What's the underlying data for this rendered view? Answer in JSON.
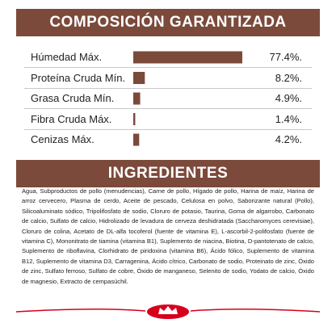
{
  "composition": {
    "title": "COMPOSICIÓN GARANTIZADA",
    "rows": [
      {
        "label": "Húmedad Máx.",
        "value": 77.4,
        "value_label": "77.4%."
      },
      {
        "label": "Proteína Cruda Mín.",
        "value": 8.2,
        "value_label": "8.2%."
      },
      {
        "label": "Grasa Cruda Mín.",
        "value": 4.9,
        "value_label": "4.9%."
      },
      {
        "label": "Fibra Cruda Máx.",
        "value": 1.4,
        "value_label": "1.4%."
      },
      {
        "label": "Cenizas Máx.",
        "value": 4.2,
        "value_label": "4.2%."
      }
    ]
  },
  "ingredients": {
    "title": "INGREDIENTES",
    "text": "Agua, Subproductos de pollo (menudencias), Carne de pollo, Hígado de pollo, Harina de maíz, Harina de arroz cervecero, Plasma de cerdo, Aceite de pescado, Celulosa en polvo, Saborizante natural (Pollo), Silicoaluminato sódico, Tripolifosfato de sodio, Cloruro de potasio, Taurina, Goma de algarrobo, Carbonato de calcio, Sulfato de calcio, Hidrolizado de levadura de cerveza deshidratada (Saccharomyces cerevisiae), Cloruro de colina, Acetato de DL-alfa tocoferol (fuente de vitamina E), L-ascorbil-2-polifosfato (fuente de vitamina C), Mononitrato de tiamina (vitamina B1), Suplemento de niacina, Biotina, D-pantotenato de calcio, Suplemento de riboflavina, Clorhidrato de piridoxina (vitamina B6), Ácido fólico, Suplemento de vitamina B12, Suplemento de vitamina D3, Carragenina, Ácido cítrico, Carbonato de sodio, Proteinato de zinc, Óxido de zinc, Sulfato ferroso, Sulfato de cobre, Óxido de manganeso, Selenito de sodio, Yodato de calcio, Óxido de magnesio, Extracto de cempasúchil."
  }
}
